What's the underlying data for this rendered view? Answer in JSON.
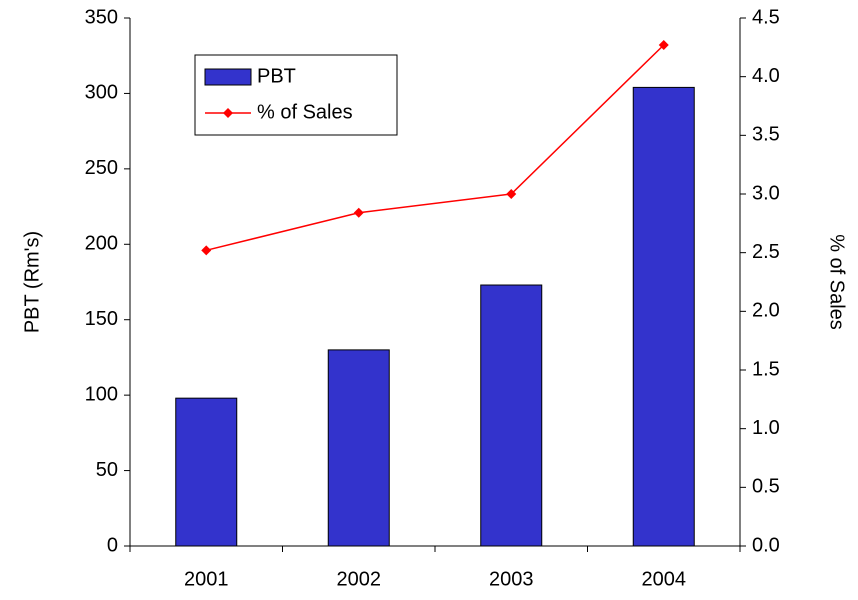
{
  "chart_data": {
    "type": "bar",
    "categories": [
      "2001",
      "2002",
      "2003",
      "2004"
    ],
    "series": [
      {
        "name": "PBT",
        "color": "#3333cc",
        "values": [
          98,
          130,
          173,
          304
        ]
      },
      {
        "name": "% of Sales",
        "color": "#ff0000",
        "axis": "y2",
        "type": "line",
        "values": [
          2.52,
          2.84,
          3.0,
          4.27
        ]
      }
    ],
    "ylabel": "PBT (Rm's)",
    "y2label": "% of Sales",
    "ylim": [
      0,
      350
    ],
    "yticks": [
      0,
      50,
      100,
      150,
      200,
      250,
      300,
      350
    ],
    "y2lim": [
      0,
      4.5
    ],
    "y2ticks": [
      {
        "value": 0,
        "label": "0.0"
      },
      0.5,
      {
        "value": 1,
        "label": "1.0"
      },
      1.5,
      {
        "value": 2,
        "label": "2.0"
      },
      2.5,
      {
        "value": 3,
        "label": "3.0"
      },
      3.5,
      {
        "value": 4,
        "label": "4.0"
      },
      4.5
    ],
    "legend": "upper left"
  }
}
